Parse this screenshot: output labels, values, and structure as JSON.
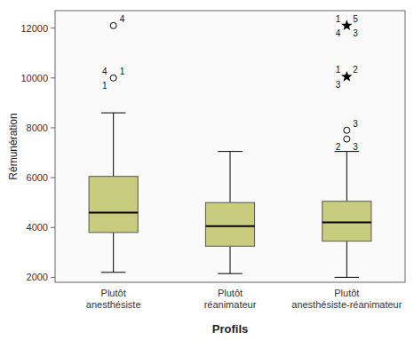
{
  "chart_data": {
    "type": "box",
    "xlabel": "Profils",
    "ylabel": "Rémunération",
    "categories": [
      "Plutôt anesthésiste",
      "Plutôt réanimateur",
      "Plutôt anesthésiste-réanimateur"
    ],
    "boxes": [
      {
        "med": 4600,
        "q1": 3800,
        "q3": 6050,
        "whislo": 2200,
        "whishi": 8600
      },
      {
        "med": 4050,
        "q1": 3250,
        "q3": 5000,
        "whislo": 2150,
        "whishi": 7050
      },
      {
        "med": 4200,
        "q1": 3450,
        "q3": 5050,
        "whislo": 2000,
        "whishi": 7050
      }
    ],
    "outliers": [
      {
        "category": 0,
        "value": 10000,
        "marker": "circle",
        "labels": [
          "4",
          "1",
          "1",
          null
        ]
      },
      {
        "category": 0,
        "value": 12100,
        "marker": "circle",
        "labels": [
          null,
          "4",
          null,
          null
        ]
      },
      {
        "category": 2,
        "value": 7900,
        "marker": "circle",
        "labels": [
          null,
          "3",
          null,
          null
        ]
      },
      {
        "category": 2,
        "value": 7550,
        "marker": "circle",
        "labels": [
          null,
          null,
          "2",
          "3"
        ]
      },
      {
        "category": 2,
        "value": 12100,
        "marker": "star",
        "labels": [
          "1",
          "5",
          "4",
          "3"
        ]
      },
      {
        "category": 2,
        "value": 10050,
        "marker": "star",
        "labels": [
          "1",
          "2",
          "3",
          null
        ]
      }
    ],
    "color": "#c9cb7e",
    "ylim": [
      1800,
      12700
    ],
    "yticks": [
      2000,
      4000,
      6000,
      8000,
      10000,
      12000
    ],
    "grid": false
  }
}
